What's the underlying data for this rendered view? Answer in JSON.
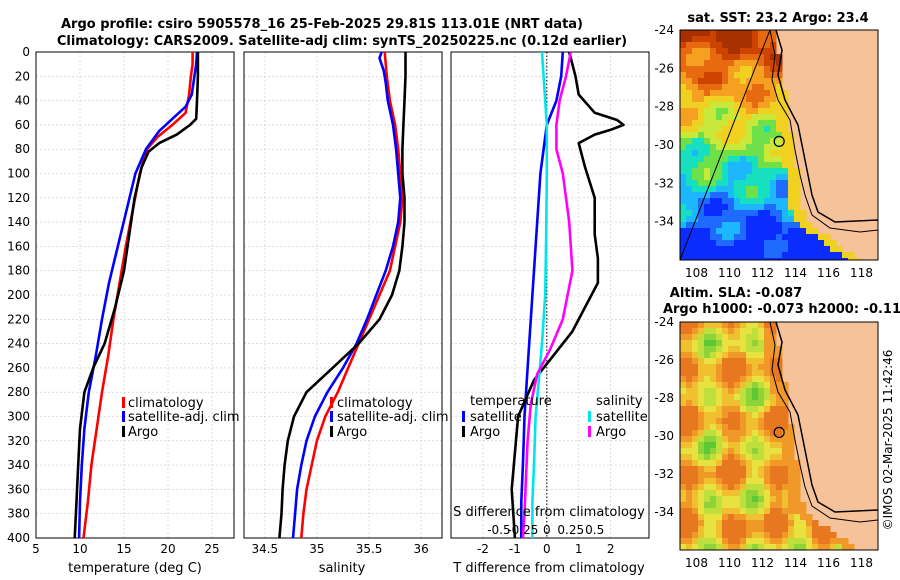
{
  "header": {
    "title_line1": "Argo profile: csiro 5905578_16 25-Feb-2025 29.81S 113.01E (NRT data)",
    "title_line2": "Climatology: CARS2009. Satellite-adj clim: synTS_20250225.nc (0.12d earlier)"
  },
  "colors": {
    "climatology": "#ff0000",
    "satellite_adj": "#0000ff",
    "argo": "#000000",
    "s_satellite": "#00e5ee",
    "s_argo": "#ff00ff",
    "land": "#f6c29a"
  },
  "chart_data": [
    {
      "type": "line",
      "name": "temperature-profile",
      "xlabel": "temperature (deg C)",
      "ylabel": "",
      "xlim": [
        5,
        27.5
      ],
      "ylim": [
        400,
        0
      ],
      "xticks": [
        5,
        10,
        15,
        20,
        25
      ],
      "yticks": [
        0,
        20,
        40,
        60,
        80,
        100,
        120,
        140,
        160,
        180,
        200,
        220,
        240,
        260,
        280,
        300,
        320,
        340,
        360,
        380,
        400
      ],
      "grid": true,
      "legend_position": "lower-right",
      "series": [
        {
          "name": "climatology",
          "color": "#ff0000",
          "points": [
            [
              22.8,
              0
            ],
            [
              22.8,
              10
            ],
            [
              22.6,
              20
            ],
            [
              22.4,
              35
            ],
            [
              22.0,
              50
            ],
            [
              20.5,
              60
            ],
            [
              18.8,
              70
            ],
            [
              17.6,
              80
            ],
            [
              16.8,
              100
            ],
            [
              16.0,
              130
            ],
            [
              15.2,
              160
            ],
            [
              14.5,
              190
            ],
            [
              13.8,
              220
            ],
            [
              13.2,
              250
            ],
            [
              12.5,
              280
            ],
            [
              11.9,
              310
            ],
            [
              11.3,
              340
            ],
            [
              10.9,
              370
            ],
            [
              10.4,
              400
            ]
          ]
        },
        {
          "name": "satellite-adj. clim",
          "color": "#0000ff",
          "points": [
            [
              23.3,
              0
            ],
            [
              23.2,
              10
            ],
            [
              23.0,
              20
            ],
            [
              22.7,
              35
            ],
            [
              22.0,
              45
            ],
            [
              20.5,
              55
            ],
            [
              19.0,
              65
            ],
            [
              17.5,
              80
            ],
            [
              16.3,
              100
            ],
            [
              15.3,
              130
            ],
            [
              14.3,
              160
            ],
            [
              13.3,
              190
            ],
            [
              12.5,
              220
            ],
            [
              11.8,
              250
            ],
            [
              11.0,
              280
            ],
            [
              10.5,
              310
            ],
            [
              10.2,
              340
            ],
            [
              10.0,
              370
            ],
            [
              9.9,
              400
            ]
          ]
        },
        {
          "name": "Argo",
          "color": "#000000",
          "points": [
            [
              23.4,
              0
            ],
            [
              23.4,
              20
            ],
            [
              23.3,
              40
            ],
            [
              23.2,
              55
            ],
            [
              22.5,
              60
            ],
            [
              21.0,
              68
            ],
            [
              19.0,
              75
            ],
            [
              17.8,
              82
            ],
            [
              17.0,
              95
            ],
            [
              16.2,
              120
            ],
            [
              15.6,
              150
            ],
            [
              15.0,
              180
            ],
            [
              14.0,
              210
            ],
            [
              12.8,
              240
            ],
            [
              11.5,
              260
            ],
            [
              10.5,
              280
            ],
            [
              10.0,
              310
            ],
            [
              9.8,
              340
            ],
            [
              9.6,
              370
            ],
            [
              9.4,
              400
            ]
          ]
        }
      ]
    },
    {
      "type": "line",
      "name": "salinity-profile",
      "xlabel": "salinity",
      "ylabel": "",
      "xlim": [
        34.3,
        36.2
      ],
      "ylim": [
        400,
        0
      ],
      "xticks": [
        34.5,
        35,
        35.5,
        36
      ],
      "grid": true,
      "legend_position": "lower-right",
      "series": [
        {
          "name": "climatology",
          "color": "#ff0000",
          "points": [
            [
              35.65,
              0
            ],
            [
              35.67,
              20
            ],
            [
              35.7,
              40
            ],
            [
              35.75,
              60
            ],
            [
              35.78,
              80
            ],
            [
              35.8,
              100
            ],
            [
              35.82,
              120
            ],
            [
              35.8,
              140
            ],
            [
              35.75,
              160
            ],
            [
              35.7,
              180
            ],
            [
              35.6,
              200
            ],
            [
              35.5,
              220
            ],
            [
              35.4,
              240
            ],
            [
              35.3,
              260
            ],
            [
              35.2,
              280
            ],
            [
              35.08,
              300
            ],
            [
              35.0,
              320
            ],
            [
              34.95,
              340
            ],
            [
              34.9,
              360
            ],
            [
              34.87,
              380
            ],
            [
              34.85,
              400
            ]
          ]
        },
        {
          "name": "satellite-adj. clim",
          "color": "#0000ff",
          "points": [
            [
              35.62,
              0
            ],
            [
              35.6,
              5
            ],
            [
              35.64,
              15
            ],
            [
              35.66,
              25
            ],
            [
              35.68,
              40
            ],
            [
              35.73,
              60
            ],
            [
              35.76,
              80
            ],
            [
              35.78,
              100
            ],
            [
              35.8,
              120
            ],
            [
              35.78,
              140
            ],
            [
              35.73,
              160
            ],
            [
              35.66,
              180
            ],
            [
              35.57,
              200
            ],
            [
              35.48,
              220
            ],
            [
              35.38,
              240
            ],
            [
              35.25,
              260
            ],
            [
              35.1,
              280
            ],
            [
              34.98,
              300
            ],
            [
              34.9,
              320
            ],
            [
              34.85,
              340
            ],
            [
              34.81,
              360
            ],
            [
              34.79,
              380
            ],
            [
              34.77,
              400
            ]
          ]
        },
        {
          "name": "Argo",
          "color": "#000000",
          "points": [
            [
              35.85,
              0
            ],
            [
              35.85,
              20
            ],
            [
              35.84,
              40
            ],
            [
              35.83,
              60
            ],
            [
              35.82,
              80
            ],
            [
              35.82,
              100
            ],
            [
              35.84,
              120
            ],
            [
              35.84,
              140
            ],
            [
              35.82,
              160
            ],
            [
              35.79,
              180
            ],
            [
              35.72,
              200
            ],
            [
              35.6,
              220
            ],
            [
              35.4,
              240
            ],
            [
              35.15,
              260
            ],
            [
              34.9,
              280
            ],
            [
              34.78,
              300
            ],
            [
              34.72,
              320
            ],
            [
              34.69,
              340
            ],
            [
              34.67,
              360
            ],
            [
              34.66,
              380
            ],
            [
              34.64,
              400
            ]
          ]
        }
      ]
    },
    {
      "type": "line",
      "name": "difference-profile",
      "xlabel": "T difference from climatology",
      "top_label": "S difference from climatology",
      "xlim": [
        -3,
        3.2
      ],
      "ylim": [
        400,
        0
      ],
      "xticks": [
        -2,
        -1,
        0,
        1,
        2
      ],
      "s_ticks": [
        "-0.5",
        "-0.25",
        "0",
        "0.25",
        "0.5"
      ],
      "s_tick_positions": [
        -1.5,
        -0.75,
        0,
        0.75,
        1.5
      ],
      "grid": true,
      "zero_line": true,
      "legend_temperature": {
        "title": "temperature",
        "items": [
          "satellite",
          "Argo"
        ]
      },
      "legend_salinity": {
        "title": "salinity",
        "items": [
          "satellite",
          "Argo"
        ]
      },
      "series": [
        {
          "name": "T satellite",
          "color": "#0000ff",
          "points": [
            [
              0.5,
              0
            ],
            [
              0.45,
              20
            ],
            [
              0.3,
              40
            ],
            [
              0.0,
              60
            ],
            [
              -0.1,
              80
            ],
            [
              -0.2,
              100
            ],
            [
              -0.3,
              140
            ],
            [
              -0.4,
              180
            ],
            [
              -0.5,
              220
            ],
            [
              -0.6,
              260
            ],
            [
              -0.7,
              300
            ],
            [
              -0.75,
              340
            ],
            [
              -0.8,
              370
            ],
            [
              -0.8,
              400
            ]
          ]
        },
        {
          "name": "T Argo",
          "color": "#000000",
          "points": [
            [
              0.7,
              0
            ],
            [
              0.9,
              20
            ],
            [
              1.0,
              35
            ],
            [
              1.5,
              50
            ],
            [
              2.2,
              56
            ],
            [
              2.4,
              60
            ],
            [
              2.0,
              64
            ],
            [
              1.5,
              68
            ],
            [
              1.0,
              75
            ],
            [
              1.2,
              95
            ],
            [
              1.5,
              120
            ],
            [
              1.5,
              150
            ],
            [
              1.6,
              170
            ],
            [
              1.6,
              190
            ],
            [
              1.2,
              210
            ],
            [
              0.8,
              230
            ],
            [
              0.2,
              250
            ],
            [
              -0.4,
              270
            ],
            [
              -0.9,
              300
            ],
            [
              -1.0,
              330
            ],
            [
              -1.1,
              360
            ],
            [
              -1.0,
              400
            ]
          ]
        },
        {
          "name": "S satellite",
          "color": "#00e5ee",
          "points": [
            [
              -0.15,
              0
            ],
            [
              -0.1,
              20
            ],
            [
              -0.05,
              40
            ],
            [
              0.0,
              60
            ],
            [
              0.0,
              100
            ],
            [
              -0.02,
              150
            ],
            [
              -0.05,
              200
            ],
            [
              -0.15,
              240
            ],
            [
              -0.25,
              270
            ],
            [
              -0.35,
              300
            ],
            [
              -0.4,
              340
            ],
            [
              -0.45,
              370
            ],
            [
              -0.45,
              400
            ]
          ]
        },
        {
          "name": "S Argo",
          "color": "#ff00ff",
          "points": [
            [
              0.75,
              0
            ],
            [
              0.6,
              20
            ],
            [
              0.4,
              40
            ],
            [
              0.3,
              60
            ],
            [
              0.3,
              80
            ],
            [
              0.5,
              100
            ],
            [
              0.7,
              140
            ],
            [
              0.8,
              180
            ],
            [
              0.5,
              220
            ],
            [
              0.1,
              245
            ],
            [
              -0.3,
              265
            ],
            [
              -0.5,
              290
            ],
            [
              -0.6,
              320
            ],
            [
              -0.65,
              350
            ],
            [
              -0.7,
              380
            ],
            [
              -0.75,
              400
            ]
          ]
        }
      ]
    },
    {
      "type": "heatmap",
      "name": "sst-map",
      "title": "sat. SST: 23.2  Argo: 23.4",
      "xticks": [
        "108",
        "110",
        "112",
        "114",
        "116",
        "118"
      ],
      "yticks": [
        "-24",
        "-26",
        "-28",
        "-30",
        "-32",
        "-34"
      ],
      "lon_range": [
        107,
        119
      ],
      "lat_range": [
        -36,
        -24
      ],
      "argo_position": [
        113.01,
        -29.81
      ]
    },
    {
      "type": "heatmap",
      "name": "sla-map",
      "title_line1": "Altim. SLA: -0.087",
      "title_line2": "Argo h1000: -0.073 h2000: -0.11",
      "xticks": [
        "108",
        "110",
        "112",
        "114",
        "116",
        "118"
      ],
      "yticks": [
        "-24",
        "-26",
        "-28",
        "-30",
        "-32",
        "-34"
      ],
      "lon_range": [
        107,
        119
      ],
      "lat_range": [
        -36,
        -24
      ],
      "argo_position": [
        113.01,
        -29.81
      ]
    }
  ],
  "legend_labels": {
    "climatology": "climatology",
    "satellite_adj": "satellite-adj. clim",
    "argo": "Argo"
  },
  "footer": {
    "copyright": "©IMOS 02-Mar-2025 11:42:46"
  }
}
